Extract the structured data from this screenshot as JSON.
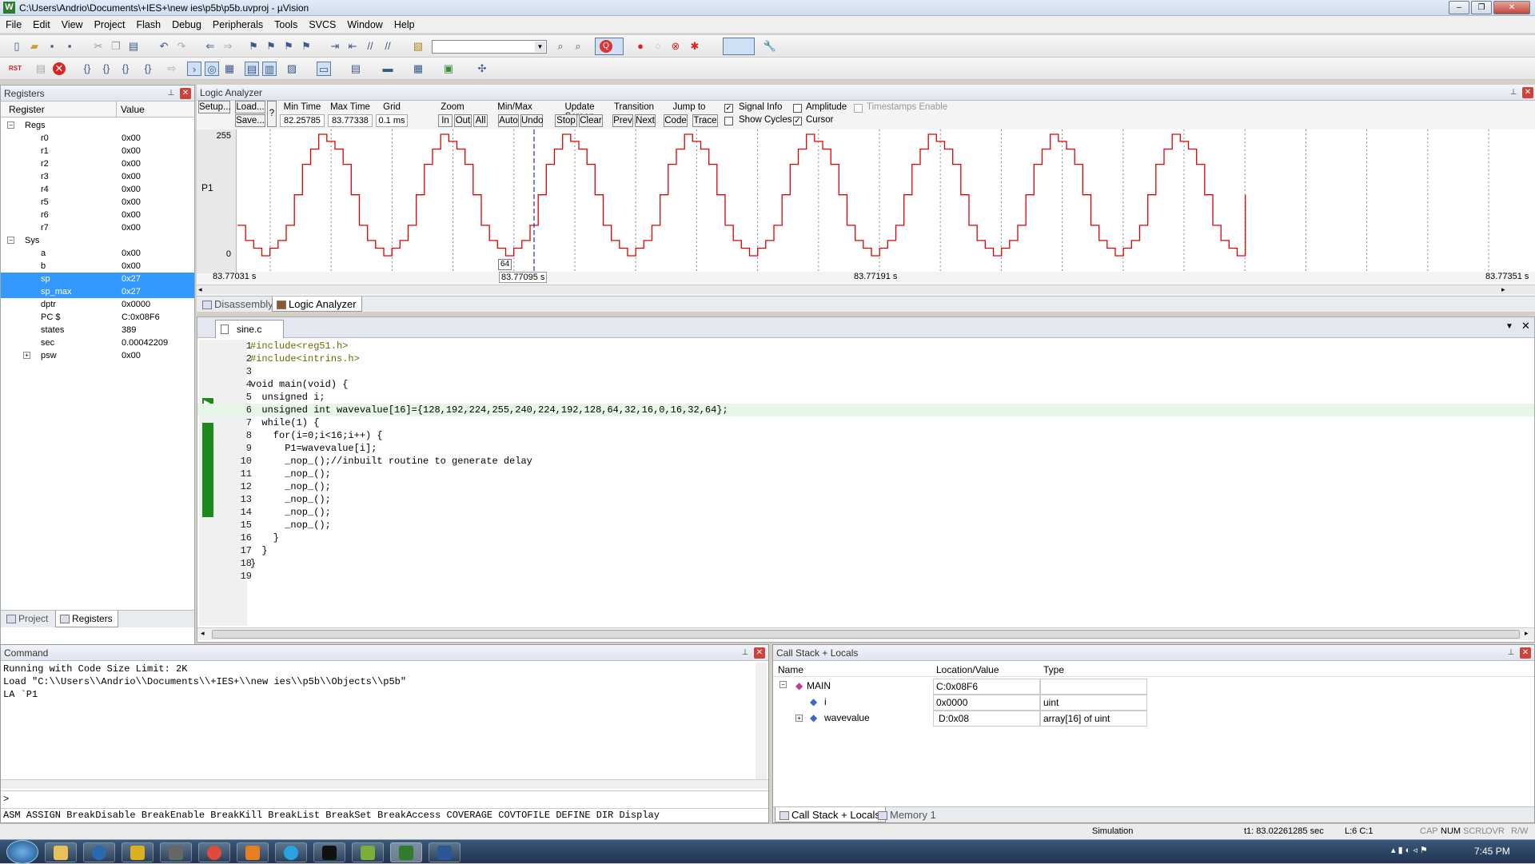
{
  "window": {
    "title": "C:\\Users\\Andrio\\Documents\\+IES+\\new ies\\p5b\\p5b.uvproj - µVision",
    "app_icon": "W"
  },
  "menu": [
    "File",
    "Edit",
    "View",
    "Project",
    "Flash",
    "Debug",
    "Peripherals",
    "Tools",
    "SVCS",
    "Window",
    "Help"
  ],
  "registers": {
    "title": "Registers",
    "col_register": "Register",
    "col_value": "Value",
    "groups": [
      {
        "name": "Regs",
        "items": [
          {
            "name": "r0",
            "value": "0x00"
          },
          {
            "name": "r1",
            "value": "0x00"
          },
          {
            "name": "r2",
            "value": "0x00"
          },
          {
            "name": "r3",
            "value": "0x00"
          },
          {
            "name": "r4",
            "value": "0x00"
          },
          {
            "name": "r5",
            "value": "0x00"
          },
          {
            "name": "r6",
            "value": "0x00"
          },
          {
            "name": "r7",
            "value": "0x00"
          }
        ]
      },
      {
        "name": "Sys",
        "items": [
          {
            "name": "a",
            "value": "0x00"
          },
          {
            "name": "b",
            "value": "0x00"
          },
          {
            "name": "sp",
            "value": "0x27",
            "selected": true
          },
          {
            "name": "sp_max",
            "value": "0x27",
            "selected": true
          },
          {
            "name": "dptr",
            "value": "0x0000"
          },
          {
            "name": "PC  $",
            "value": "C:0x08F6"
          },
          {
            "name": "states",
            "value": "389"
          },
          {
            "name": "sec",
            "value": "0.00042209"
          },
          {
            "name": "psw",
            "value": "0x00"
          }
        ]
      }
    ],
    "tabs": [
      "Project",
      "Registers"
    ]
  },
  "logic_analyzer": {
    "title": "Logic Analyzer",
    "setup": "Setup...",
    "load": "Load...",
    "save": "Save...",
    "help": "?",
    "min_time_label": "Min Time",
    "min_time": "82.25785 s",
    "max_time_label": "Max Time",
    "max_time": "83.77338 s",
    "grid_label": "Grid",
    "grid": "0.1 ms",
    "zoom_label": "Zoom",
    "zoom_in": "In",
    "zoom_out": "Out",
    "zoom_all": "All",
    "minmax_label": "Min/Max",
    "auto": "Auto",
    "undo": "Undo",
    "update_label": "Update Screen",
    "stop": "Stop",
    "clear": "Clear",
    "transition_label": "Transition",
    "prev": "Prev",
    "next": "Next",
    "jump_label": "Jump to",
    "code": "Code",
    "trace": "Trace",
    "signal_info": "Signal Info",
    "signal_info_checked": true,
    "show_cycles": "Show Cycles",
    "show_cycles_checked": false,
    "amplitude": "Amplitude",
    "amplitude_checked": false,
    "cursor": "Cursor",
    "cursor_checked": true,
    "timestamps": "Timestamps Enable",
    "signal_name": "P1",
    "y_max": "255",
    "y_min": "0",
    "cursor_value": "64",
    "t_left": "83.77031 s",
    "t_cursor": "83.77095 s",
    "t_mid": "83.77191 s",
    "t_right": "83.77351 s",
    "tabs": [
      "Disassembly",
      "Logic Analyzer"
    ]
  },
  "chart_data": {
    "type": "line",
    "series": [
      {
        "name": "P1",
        "values": [
          128,
          192,
          224,
          255,
          240,
          224,
          192,
          128,
          64,
          32,
          16,
          0,
          16,
          32,
          64
        ]
      }
    ],
    "ylim": [
      0,
      255
    ],
    "cycles_visible": 8
  },
  "editor": {
    "file_tab": "sine.c",
    "lines": [
      "#include<reg51.h>",
      "#include<intrins.h>",
      "",
      "void main(void) {",
      "  unsigned i;",
      "  unsigned int wavevalue[16]={128,192,224,255,240,224,192,128,64,32,16,0,16,32,64};",
      "  while(1) {",
      "    for(i=0;i<16;i++) {",
      "      P1=wavevalue[i];",
      "      _nop_();//inbuilt routine to generate delay",
      "      _nop_();",
      "      _nop_();",
      "      _nop_();",
      "      _nop_();",
      "      _nop_();",
      "    }",
      "  }",
      "}",
      ""
    ],
    "current_line": 6
  },
  "command": {
    "title": "Command",
    "output": [
      "Running with Code Size Limit: 2K",
      "Load \"C:\\\\Users\\\\Andrio\\\\Documents\\\\+IES+\\\\new ies\\\\p5b\\\\Objects\\\\p5b\"",
      "LA `P1"
    ],
    "prompt": ">",
    "hints": "ASM ASSIGN BreakDisable BreakEnable BreakKill BreakList BreakSet BreakAccess COVERAGE COVTOFILE DEFINE DIR Display"
  },
  "callstack": {
    "title": "Call Stack + Locals",
    "columns": [
      "Name",
      "Location/Value",
      "Type"
    ],
    "rows": [
      {
        "name": "MAIN",
        "value": "C:0x08F6",
        "type": ""
      },
      {
        "name": "i",
        "value": "0x0000",
        "type": "uint"
      },
      {
        "name": "wavevalue",
        "value": "D:0x08",
        "type": "array[16] of uint"
      }
    ],
    "tabs": [
      "Call Stack + Locals",
      "Memory 1"
    ]
  },
  "status": {
    "mode": "Simulation",
    "time": "t1: 83.02261285 sec",
    "pos": "L:6 C:1",
    "caps": "CAP",
    "num": "NUM",
    "scrl": "SCRL",
    "ovr": "OVR",
    "rw": "R/W"
  },
  "taskbar": {
    "clock": "7:45 PM"
  }
}
